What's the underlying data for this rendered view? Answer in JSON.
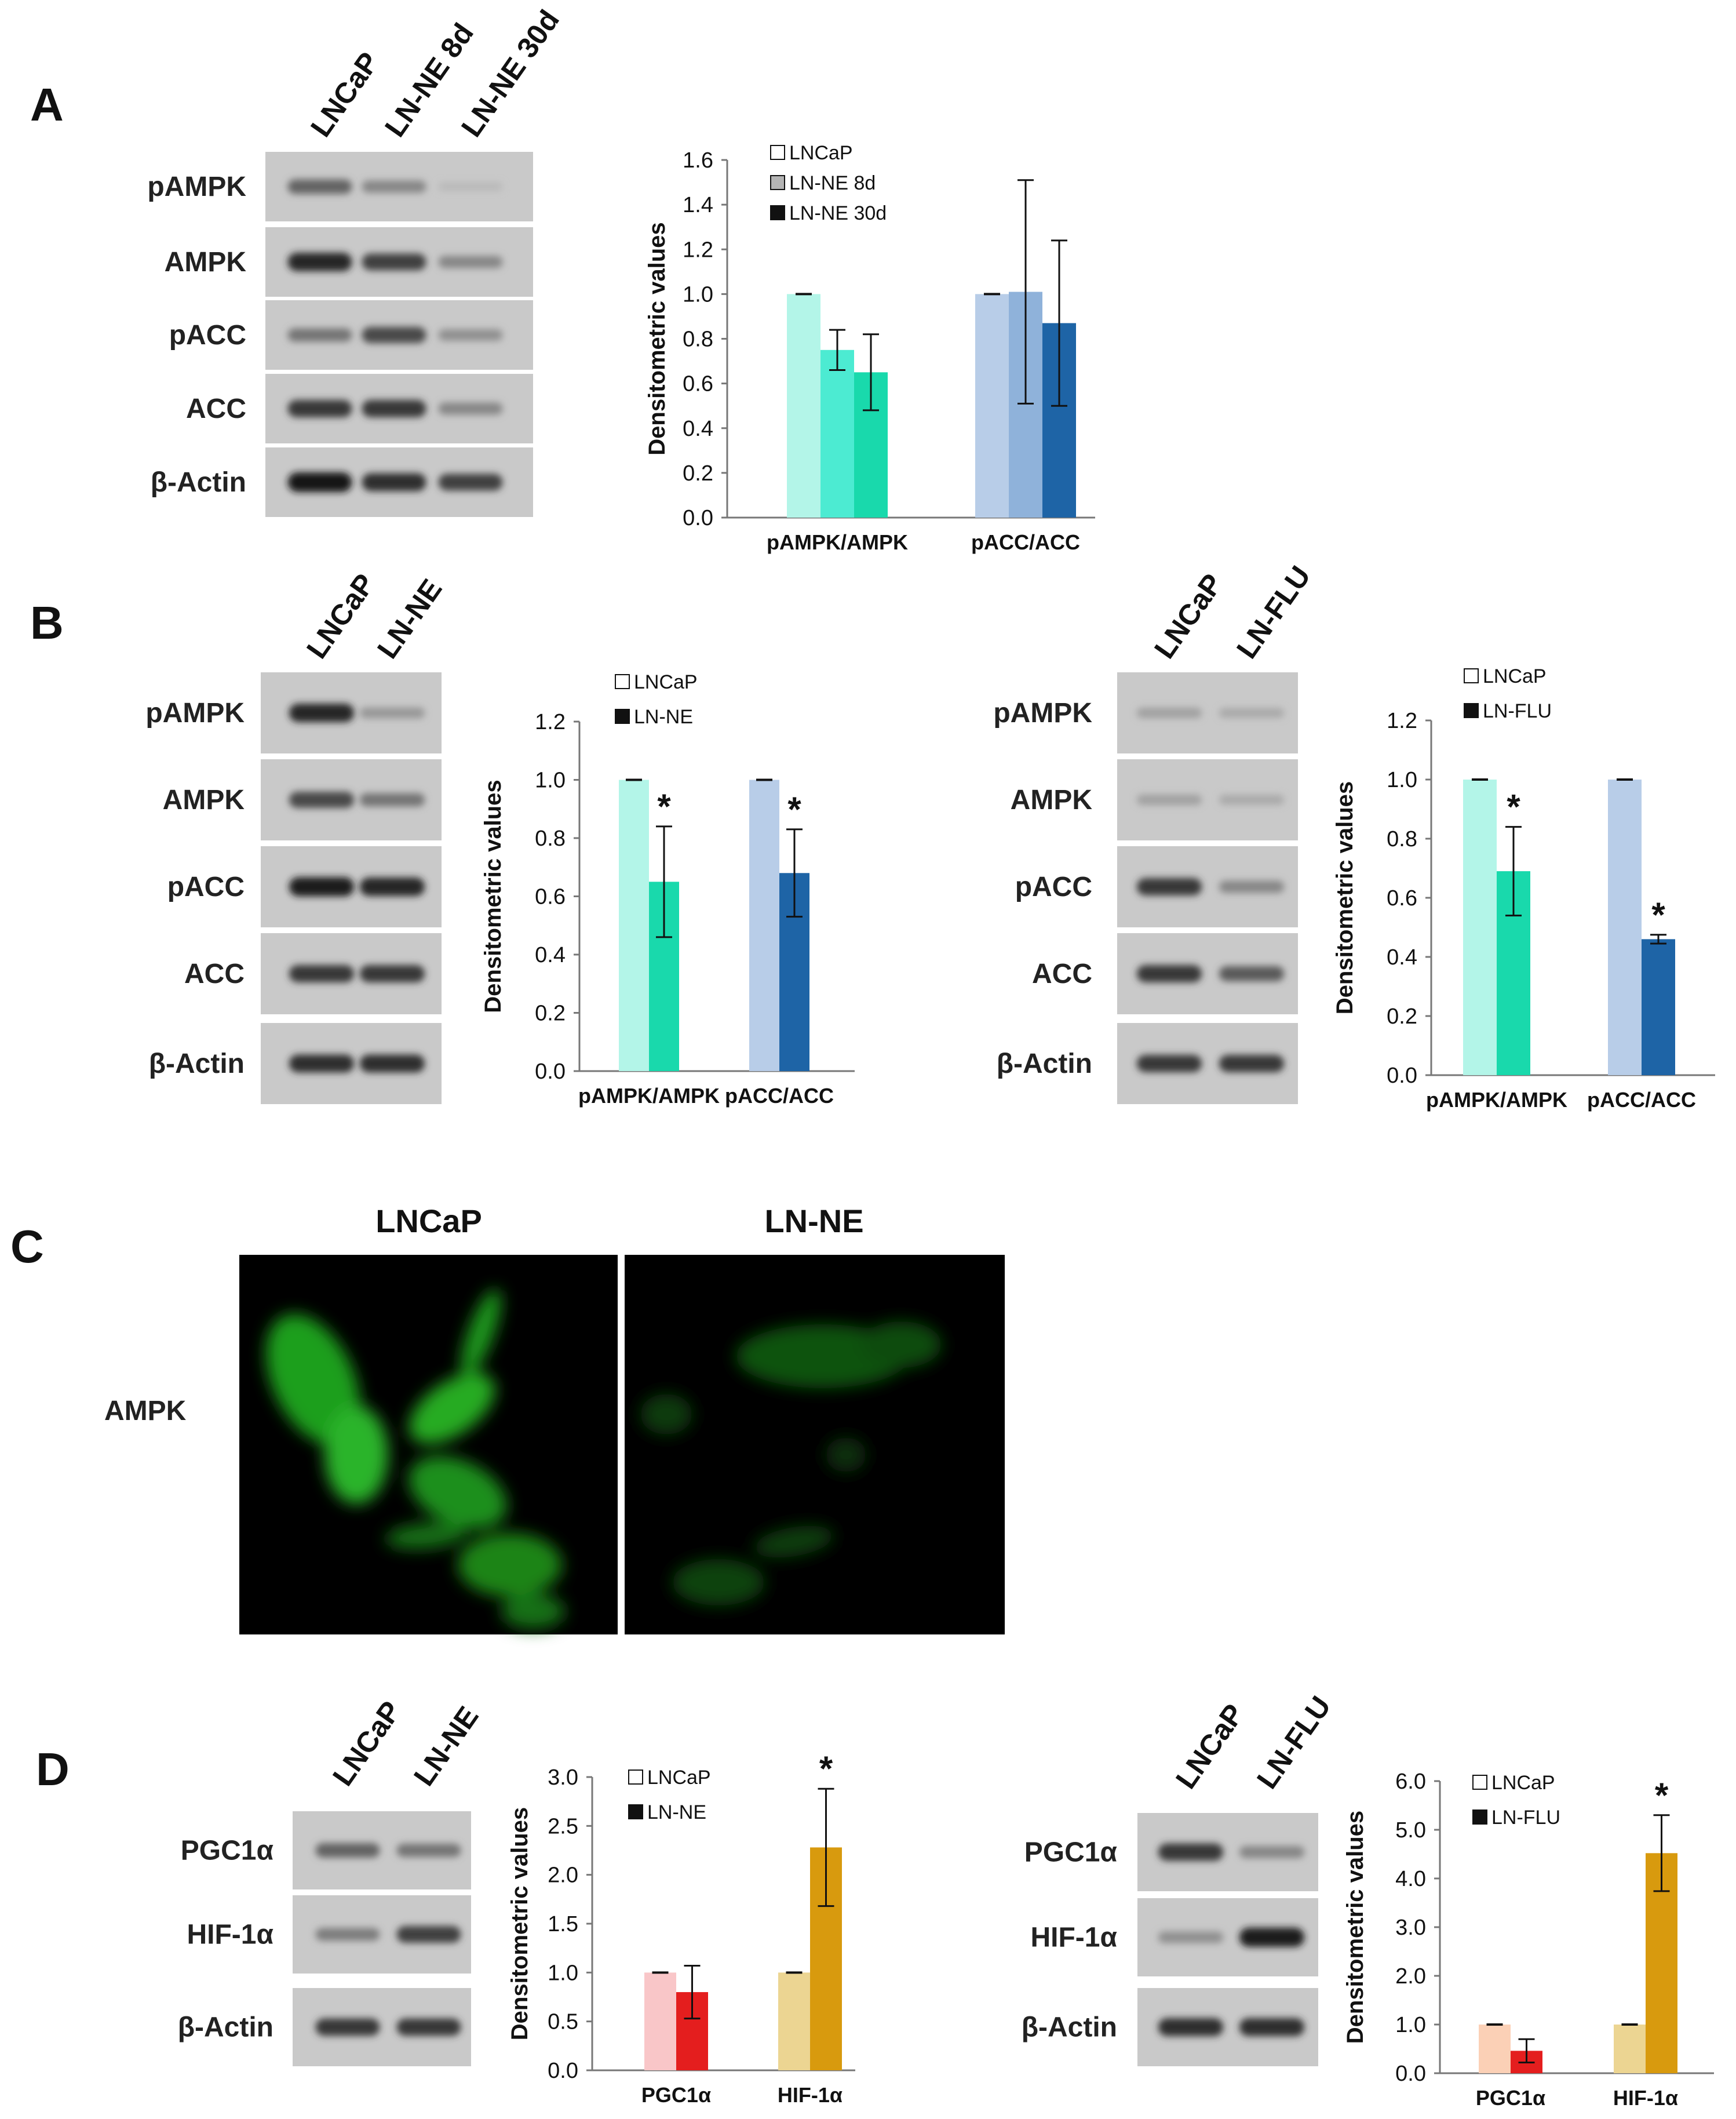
{
  "panels": {
    "A": {
      "label": "A",
      "lanes": [
        "LNCaP",
        "LN-NE 8d",
        "LN-NE 30d"
      ],
      "rows": [
        {
          "name": "pAMPK",
          "bands": [
            0.55,
            0.35,
            0.06
          ]
        },
        {
          "name": "AMPK",
          "bands": [
            0.9,
            0.75,
            0.35
          ]
        },
        {
          "name": "pACC",
          "bands": [
            0.45,
            0.7,
            0.3
          ]
        },
        {
          "name": "ACC",
          "bands": [
            0.8,
            0.8,
            0.35
          ]
        },
        {
          "name": "β-Actin",
          "bands": [
            1.0,
            0.85,
            0.75
          ]
        }
      ]
    },
    "B1": {
      "label": "B",
      "lanes": [
        "LNCaP",
        "LN-NE"
      ],
      "rows": [
        {
          "name": "pAMPK",
          "bands": [
            0.9,
            0.25
          ]
        },
        {
          "name": "AMPK",
          "bands": [
            0.7,
            0.45
          ]
        },
        {
          "name": "pACC",
          "bands": [
            0.95,
            0.9
          ]
        },
        {
          "name": "ACC",
          "bands": [
            0.8,
            0.8
          ]
        },
        {
          "name": "β-Actin",
          "bands": [
            0.85,
            0.85
          ]
        }
      ]
    },
    "B2": {
      "lanes": [
        "LNCaP",
        "LN-FLU"
      ],
      "rows": [
        {
          "name": "pAMPK",
          "bands": [
            0.2,
            0.15
          ]
        },
        {
          "name": "AMPK",
          "bands": [
            0.2,
            0.15
          ]
        },
        {
          "name": "pACC",
          "bands": [
            0.8,
            0.35
          ]
        },
        {
          "name": "ACC",
          "bands": [
            0.8,
            0.6
          ]
        },
        {
          "name": "β-Actin",
          "bands": [
            0.8,
            0.8
          ]
        }
      ]
    },
    "C": {
      "label": "C",
      "row_label": "AMPK",
      "titles": [
        "LNCaP",
        "LN-NE"
      ]
    },
    "D1": {
      "label": "D",
      "lanes": [
        "LNCaP",
        "LN-NE"
      ],
      "rows": [
        {
          "name": "PGC1α",
          "bands": [
            0.55,
            0.45
          ]
        },
        {
          "name": "HIF-1α",
          "bands": [
            0.4,
            0.75
          ]
        },
        {
          "name": "β-Actin",
          "bands": [
            0.8,
            0.8
          ]
        }
      ]
    },
    "D2": {
      "lanes": [
        "LNCaP",
        "LN-FLU"
      ],
      "rows": [
        {
          "name": "PGC1α",
          "bands": [
            0.8,
            0.35
          ]
        },
        {
          "name": "HIF-1α",
          "bands": [
            0.3,
            0.95
          ]
        },
        {
          "name": "β-Actin",
          "bands": [
            0.85,
            0.85
          ]
        }
      ]
    }
  },
  "chart_data": [
    {
      "id": "A",
      "type": "bar",
      "ylabel": "Densitometric values",
      "ylim": [
        0,
        1.6
      ],
      "yticks": [
        "0.0",
        "0.2",
        "0.4",
        "0.6",
        "0.8",
        "1.0",
        "1.2",
        "1.4",
        "1.6"
      ],
      "categories": [
        "pAMPK/AMPK",
        "pACC/ACC"
      ],
      "legend_position": "top-left",
      "series": [
        {
          "name": "LNCaP",
          "values": [
            1.0,
            1.0
          ],
          "errors": [
            0.0,
            0.0
          ],
          "colors": [
            "#b3f5e8",
            "#b8cde8"
          ],
          "legend_color": "#ffffff"
        },
        {
          "name": "LN-NE 8d",
          "values": [
            0.75,
            1.01
          ],
          "errors": [
            0.09,
            0.5
          ],
          "colors": [
            "#4cebd2",
            "#8fb2da"
          ],
          "legend_color": "#b4b4b4"
        },
        {
          "name": "LN-NE 30d",
          "values": [
            0.65,
            0.87
          ],
          "errors": [
            0.17,
            0.37
          ],
          "colors": [
            "#19d9ac",
            "#1e64a6"
          ],
          "legend_color": "#111111"
        }
      ],
      "stars": [
        [
          false,
          false
        ],
        [
          false,
          false
        ],
        [
          false,
          false
        ]
      ]
    },
    {
      "id": "B1",
      "type": "bar",
      "ylabel": "Densitometric values",
      "ylim": [
        0,
        1.2
      ],
      "yticks": [
        "0.0",
        "0.2",
        "0.4",
        "0.6",
        "0.8",
        "1.0",
        "1.2"
      ],
      "categories": [
        "pAMPK/AMPK",
        "pACC/ACC"
      ],
      "legend_position": "top",
      "series": [
        {
          "name": "LNCaP",
          "values": [
            1.0,
            1.0
          ],
          "errors": [
            0.0,
            0.0
          ],
          "colors": [
            "#b3f5e8",
            "#b8cde8"
          ],
          "legend_color": "#ffffff"
        },
        {
          "name": "LN-NE",
          "values": [
            0.65,
            0.68
          ],
          "errors": [
            0.19,
            0.15
          ],
          "colors": [
            "#19d9ac",
            "#1e64a6"
          ],
          "legend_color": "#111111"
        }
      ],
      "stars": [
        [
          false,
          false
        ],
        [
          true,
          true
        ]
      ],
      "star_text": "*"
    },
    {
      "id": "B2",
      "type": "bar",
      "ylabel": "Densitometric values",
      "ylim": [
        0,
        1.2
      ],
      "yticks": [
        "0.0",
        "0.2",
        "0.4",
        "0.6",
        "0.8",
        "1.0",
        "1.2"
      ],
      "categories": [
        "pAMPK/AMPK",
        "pACC/ACC"
      ],
      "legend_position": "top",
      "series": [
        {
          "name": "LNCaP",
          "values": [
            1.0,
            1.0
          ],
          "errors": [
            0.0,
            0.0
          ],
          "colors": [
            "#b3f5e8",
            "#b8cde8"
          ],
          "legend_color": "#ffffff"
        },
        {
          "name": "LN-FLU",
          "values": [
            0.69,
            0.46
          ],
          "errors": [
            0.15,
            0.015
          ],
          "colors": [
            "#19d9ac",
            "#1e64a6"
          ],
          "legend_color": "#111111"
        }
      ],
      "stars": [
        [
          false,
          false
        ],
        [
          true,
          true
        ]
      ],
      "star_text": "*"
    },
    {
      "id": "D1",
      "type": "bar",
      "ylabel": "Densitometric values",
      "ylim": [
        0,
        3.0
      ],
      "yticks": [
        "0.0",
        "0.5",
        "1.0",
        "1.5",
        "2.0",
        "2.5",
        "3.0"
      ],
      "categories": [
        "PGC1α",
        "HIF-1α"
      ],
      "legend_position": "top",
      "series": [
        {
          "name": "LNCaP",
          "values": [
            1.0,
            1.0
          ],
          "errors": [
            0.0,
            0.0
          ],
          "colors": [
            "#f9c6c8",
            "#ecd592"
          ],
          "legend_color": "#ffffff"
        },
        {
          "name": "LN-NE",
          "values": [
            0.8,
            2.28
          ],
          "errors": [
            0.27,
            0.6
          ],
          "colors": [
            "#e41e1e",
            "#d89a0e"
          ],
          "legend_color": "#111111"
        }
      ],
      "stars": [
        [
          false,
          false
        ],
        [
          false,
          true
        ]
      ],
      "star_text": "*"
    },
    {
      "id": "D2",
      "type": "bar",
      "ylabel": "Densitometric values",
      "ylim": [
        0,
        6.0
      ],
      "yticks": [
        "0.0",
        "1.0",
        "2.0",
        "3.0",
        "4.0",
        "5.0",
        "6.0"
      ],
      "categories": [
        "PGC1α",
        "HIF-1α"
      ],
      "legend_position": "top",
      "series": [
        {
          "name": "LNCaP",
          "values": [
            1.0,
            1.0
          ],
          "errors": [
            0.0,
            0.0
          ],
          "colors": [
            "#fbd0b6",
            "#ecd592"
          ],
          "legend_color": "#ffffff"
        },
        {
          "name": "LN-FLU",
          "values": [
            0.46,
            4.52
          ],
          "errors": [
            0.24,
            0.78
          ],
          "colors": [
            "#e41e1e",
            "#d89a0e"
          ],
          "legend_color": "#111111"
        }
      ],
      "stars": [
        [
          false,
          false
        ],
        [
          false,
          true
        ]
      ],
      "star_text": "*"
    }
  ]
}
